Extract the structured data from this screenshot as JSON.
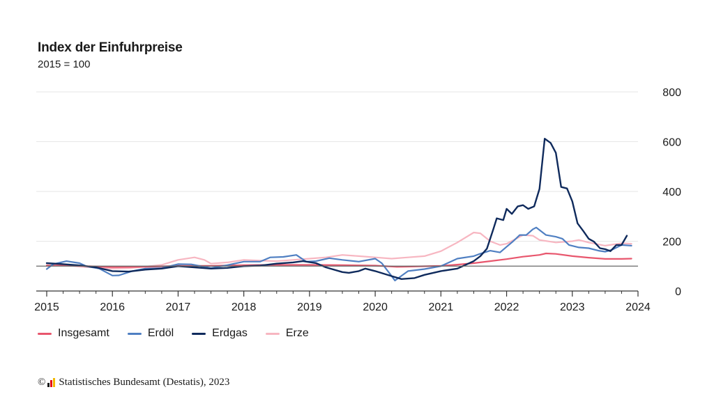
{
  "colors": {
    "insgesamt": "#e8566d",
    "erdoel": "#4f7fc2",
    "erdgas": "#0f2a5c",
    "erze": "#f7b6c1",
    "grid": "#e6e6e6",
    "baseline": "#666666"
  },
  "chart_data": {
    "type": "line",
    "title": "Index der Einfuhrpreise",
    "subtitle": "2015 = 100",
    "xlim": [
      2015.0,
      2024.0
    ],
    "ylim": [
      0,
      800
    ],
    "x_ticks": [
      "2015",
      "2016",
      "2017",
      "2018",
      "2019",
      "2020",
      "2021",
      "2022",
      "2023",
      "2024"
    ],
    "y_ticks": [
      "0",
      "200",
      "400",
      "600",
      "800"
    ],
    "reference_line": 100,
    "grid": true,
    "legend_position": "bottom-left",
    "series": [
      {
        "name": "Insgesamt",
        "color_key": "insgesamt",
        "points": [
          [
            2015.0,
            103
          ],
          [
            2015.5,
            101
          ],
          [
            2016.0,
            96
          ],
          [
            2016.5,
            97
          ],
          [
            2017.0,
            101
          ],
          [
            2017.5,
            101
          ],
          [
            2018.0,
            104
          ],
          [
            2018.5,
            105
          ],
          [
            2019.0,
            105
          ],
          [
            2019.5,
            104
          ],
          [
            2020.0,
            102
          ],
          [
            2020.33,
            97
          ],
          [
            2020.5,
            98
          ],
          [
            2021.0,
            101
          ],
          [
            2021.25,
            106
          ],
          [
            2021.5,
            112
          ],
          [
            2021.75,
            120
          ],
          [
            2022.0,
            128
          ],
          [
            2022.25,
            138
          ],
          [
            2022.5,
            145
          ],
          [
            2022.6,
            151
          ],
          [
            2022.75,
            149
          ],
          [
            2023.0,
            140
          ],
          [
            2023.25,
            134
          ],
          [
            2023.5,
            129
          ],
          [
            2023.75,
            129
          ],
          [
            2023.9,
            130
          ]
        ]
      },
      {
        "name": "Erdöl",
        "color_key": "erdoel",
        "points": [
          [
            2015.0,
            88
          ],
          [
            2015.1,
            108
          ],
          [
            2015.3,
            120
          ],
          [
            2015.5,
            112
          ],
          [
            2015.6,
            100
          ],
          [
            2015.8,
            90
          ],
          [
            2016.0,
            62
          ],
          [
            2016.1,
            63
          ],
          [
            2016.3,
            80
          ],
          [
            2016.5,
            90
          ],
          [
            2016.75,
            92
          ],
          [
            2017.0,
            108
          ],
          [
            2017.2,
            107
          ],
          [
            2017.5,
            92
          ],
          [
            2017.75,
            104
          ],
          [
            2018.0,
            118
          ],
          [
            2018.25,
            118
          ],
          [
            2018.4,
            135
          ],
          [
            2018.6,
            137
          ],
          [
            2018.8,
            145
          ],
          [
            2018.95,
            118
          ],
          [
            2019.1,
            120
          ],
          [
            2019.3,
            132
          ],
          [
            2019.5,
            125
          ],
          [
            2019.75,
            118
          ],
          [
            2020.0,
            130
          ],
          [
            2020.1,
            112
          ],
          [
            2020.25,
            60
          ],
          [
            2020.3,
            42
          ],
          [
            2020.5,
            80
          ],
          [
            2020.75,
            88
          ],
          [
            2021.0,
            100
          ],
          [
            2021.25,
            130
          ],
          [
            2021.5,
            140
          ],
          [
            2021.6,
            150
          ],
          [
            2021.75,
            162
          ],
          [
            2021.9,
            155
          ],
          [
            2022.0,
            178
          ],
          [
            2022.1,
            200
          ],
          [
            2022.2,
            225
          ],
          [
            2022.3,
            225
          ],
          [
            2022.4,
            248
          ],
          [
            2022.45,
            255
          ],
          [
            2022.6,
            225
          ],
          [
            2022.75,
            218
          ],
          [
            2022.85,
            210
          ],
          [
            2022.95,
            185
          ],
          [
            2023.1,
            175
          ],
          [
            2023.25,
            172
          ],
          [
            2023.4,
            162
          ],
          [
            2023.5,
            158
          ],
          [
            2023.6,
            165
          ],
          [
            2023.75,
            185
          ],
          [
            2023.9,
            182
          ]
        ]
      },
      {
        "name": "Erdgas",
        "color_key": "erdgas",
        "points": [
          [
            2015.0,
            112
          ],
          [
            2015.25,
            108
          ],
          [
            2015.5,
            103
          ],
          [
            2015.75,
            95
          ],
          [
            2016.0,
            80
          ],
          [
            2016.25,
            78
          ],
          [
            2016.5,
            86
          ],
          [
            2016.75,
            90
          ],
          [
            2017.0,
            100
          ],
          [
            2017.25,
            95
          ],
          [
            2017.5,
            90
          ],
          [
            2017.75,
            93
          ],
          [
            2018.0,
            100
          ],
          [
            2018.25,
            102
          ],
          [
            2018.5,
            110
          ],
          [
            2018.75,
            115
          ],
          [
            2018.9,
            120
          ],
          [
            2019.1,
            112
          ],
          [
            2019.25,
            95
          ],
          [
            2019.5,
            76
          ],
          [
            2019.6,
            73
          ],
          [
            2019.75,
            80
          ],
          [
            2019.85,
            90
          ],
          [
            2020.0,
            80
          ],
          [
            2020.25,
            60
          ],
          [
            2020.4,
            48
          ],
          [
            2020.6,
            52
          ],
          [
            2020.75,
            65
          ],
          [
            2021.0,
            80
          ],
          [
            2021.25,
            90
          ],
          [
            2021.5,
            120
          ],
          [
            2021.6,
            140
          ],
          [
            2021.7,
            170
          ],
          [
            2021.8,
            250
          ],
          [
            2021.85,
            292
          ],
          [
            2021.95,
            285
          ],
          [
            2022.0,
            330
          ],
          [
            2022.08,
            310
          ],
          [
            2022.17,
            340
          ],
          [
            2022.25,
            345
          ],
          [
            2022.33,
            330
          ],
          [
            2022.42,
            340
          ],
          [
            2022.5,
            410
          ],
          [
            2022.58,
            612
          ],
          [
            2022.67,
            595
          ],
          [
            2022.75,
            555
          ],
          [
            2022.83,
            418
          ],
          [
            2022.92,
            412
          ],
          [
            2023.0,
            360
          ],
          [
            2023.08,
            272
          ],
          [
            2023.17,
            240
          ],
          [
            2023.25,
            210
          ],
          [
            2023.33,
            198
          ],
          [
            2023.42,
            172
          ],
          [
            2023.5,
            168
          ],
          [
            2023.58,
            160
          ],
          [
            2023.67,
            185
          ],
          [
            2023.75,
            185
          ],
          [
            2023.83,
            222
          ]
        ]
      },
      {
        "name": "Erze",
        "color_key": "erze",
        "points": [
          [
            2015.0,
            100
          ],
          [
            2015.25,
            105
          ],
          [
            2015.5,
            98
          ],
          [
            2015.75,
            95
          ],
          [
            2016.0,
            90
          ],
          [
            2016.25,
            92
          ],
          [
            2016.5,
            98
          ],
          [
            2016.75,
            105
          ],
          [
            2017.0,
            125
          ],
          [
            2017.25,
            135
          ],
          [
            2017.4,
            125
          ],
          [
            2017.5,
            110
          ],
          [
            2017.75,
            115
          ],
          [
            2018.0,
            125
          ],
          [
            2018.25,
            122
          ],
          [
            2018.5,
            120
          ],
          [
            2018.75,
            125
          ],
          [
            2019.0,
            130
          ],
          [
            2019.25,
            135
          ],
          [
            2019.5,
            145
          ],
          [
            2019.75,
            140
          ],
          [
            2020.0,
            135
          ],
          [
            2020.25,
            130
          ],
          [
            2020.5,
            135
          ],
          [
            2020.75,
            140
          ],
          [
            2021.0,
            160
          ],
          [
            2021.25,
            195
          ],
          [
            2021.5,
            235
          ],
          [
            2021.6,
            232
          ],
          [
            2021.75,
            200
          ],
          [
            2021.9,
            185
          ],
          [
            2022.0,
            190
          ],
          [
            2022.25,
            225
          ],
          [
            2022.4,
            222
          ],
          [
            2022.5,
            205
          ],
          [
            2022.75,
            195
          ],
          [
            2023.0,
            200
          ],
          [
            2023.1,
            205
          ],
          [
            2023.25,
            195
          ],
          [
            2023.5,
            182
          ],
          [
            2023.75,
            192
          ],
          [
            2023.9,
            190
          ]
        ]
      }
    ]
  },
  "legend": [
    {
      "label": "Insgesamt",
      "color_key": "insgesamt"
    },
    {
      "label": "Erdöl",
      "color_key": "erdoel"
    },
    {
      "label": "Erdgas",
      "color_key": "erdgas"
    },
    {
      "label": "Erze",
      "color_key": "erze"
    }
  ],
  "footer": {
    "copyright": "©",
    "source": "Statistisches Bundesamt (Destatis), 2023"
  }
}
